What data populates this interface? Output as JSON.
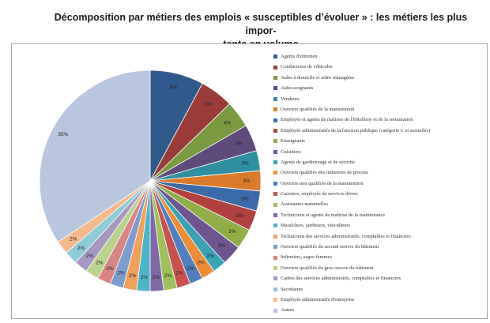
{
  "chart_data": {
    "type": "pie",
    "title": "Décomposition par métiers des emplois « susceptibles d’évoluer » : les métiers les plus importants en volume",
    "title_lines": [
      "Décomposition par métiers des emplois « susceptibles d’évoluer » : les métiers les plus impor-",
      "tants en volume"
    ],
    "legend_position": "right",
    "slices": [
      {
        "name": "Agents d'entretien",
        "value": 8,
        "label": "8%",
        "color": "#2f5b8c"
      },
      {
        "name": "Conducteurs de véhicules",
        "value": 5,
        "label": "5%",
        "color": "#9a3b38"
      },
      {
        "name": "Aides à domicile et aides ménagères",
        "value": 4,
        "label": "4%",
        "color": "#7a9a3f"
      },
      {
        "name": "Aides-soignants",
        "value": 4,
        "label": "4%",
        "color": "#5e4a7d"
      },
      {
        "name": "Vendeurs",
        "value": 3,
        "label": "3%",
        "color": "#2f8fa0"
      },
      {
        "name": "Ouvriers qualifiés de la manutention",
        "value": 3,
        "label": "3%",
        "color": "#d97b2a"
      },
      {
        "name": "Employés et agents de maîtrise de l'hôtellerie et de la restauration",
        "value": 3,
        "label": "3%",
        "color": "#3a6ba8"
      },
      {
        "name": "Employés administratifs de la fonction publique (catégorie C et assimilés)",
        "value": 3,
        "label": "3%",
        "color": "#b0413e"
      },
      {
        "name": "Enseignants",
        "value": 3,
        "label": "3%",
        "color": "#8fae45"
      },
      {
        "name": "Cuisiniers",
        "value": 3,
        "label": "3%",
        "color": "#6d5591"
      },
      {
        "name": "Agents de gardiennage et de sécurité",
        "value": 2,
        "label": "2%",
        "color": "#37a3b5"
      },
      {
        "name": "Ouvriers qualifiés des industries de process",
        "value": 2,
        "label": "2%",
        "color": "#ef8c35"
      },
      {
        "name": "Ouvriers non qualifiés de la manutention",
        "value": 2,
        "label": "2%",
        "color": "#4f7fbe"
      },
      {
        "name": "Caissiers, employés de services divers",
        "value": 2,
        "label": "2%",
        "color": "#c9504c"
      },
      {
        "name": "Assistantes maternelles",
        "value": 2,
        "label": "2%",
        "color": "#9fc05a"
      },
      {
        "name": "Techniciens et agents de maîtrise de la maintenance",
        "value": 2,
        "label": "2%",
        "color": "#8067a8"
      },
      {
        "name": "Maraîchers, jardiniers, viticulteurs",
        "value": 2,
        "label": "2%",
        "color": "#4bb6c8"
      },
      {
        "name": "Techniciens des services administratifs, comptables et financiers",
        "value": 2,
        "label": "2%",
        "color": "#f3a05a"
      },
      {
        "name": "Ouvriers qualifiés du second oeuvre du bâtiment",
        "value": 2,
        "label": "2%",
        "color": "#7d9ccf"
      },
      {
        "name": "Infirmiers, sages-femmes",
        "value": 2,
        "label": "2%",
        "color": "#d98583"
      },
      {
        "name": "Ouvriers qualifiés du gros oeuvre du bâtiment",
        "value": 2,
        "label": "2%",
        "color": "#b9d38b"
      },
      {
        "name": "Cadres des services administratifs, comptables et financiers",
        "value": 2,
        "label": "2%",
        "color": "#a797c3"
      },
      {
        "name": "Secrétaires",
        "value": 2,
        "label": "2%",
        "color": "#8ccbd7"
      },
      {
        "name": "Employés administratifs d'entreprise",
        "value": 2,
        "label": "2%",
        "color": "#f6b98a"
      },
      {
        "name": "Autres",
        "value": 35,
        "label": "35%",
        "color": "#b9c6e0"
      }
    ]
  }
}
